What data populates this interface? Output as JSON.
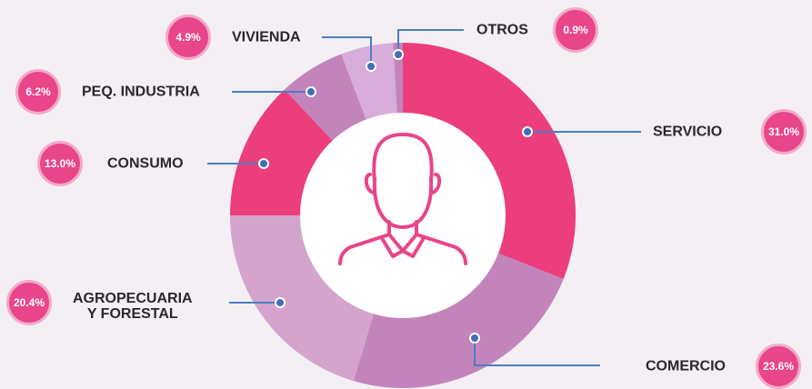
{
  "chart_data": {
    "type": "pie",
    "categories": [
      "SERVICIO",
      "COMERCIO",
      "AGROPECUARIA\nY FORESTAL",
      "CONSUMO",
      "PEQ. INDUSTRIA",
      "VIVIENDA",
      "OTROS"
    ],
    "values": [
      31.0,
      23.6,
      20.4,
      13.0,
      6.2,
      4.9,
      0.9
    ],
    "value_labels": [
      "31.0%",
      "23.6%",
      "20.4%",
      "13.0%",
      "6.2%",
      "4.9%",
      "0.9%"
    ],
    "colors": [
      "#ec3d7d",
      "#c384bb",
      "#d4a4cd",
      "#ec3d7d",
      "#c384bb",
      "#d8addb",
      "#c384bb"
    ]
  }
}
